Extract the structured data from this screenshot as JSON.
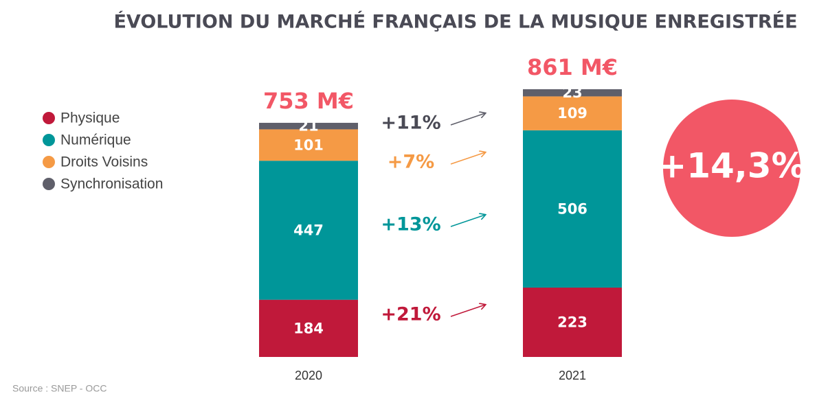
{
  "chart_data": {
    "type": "bar",
    "stacked": true,
    "title": "ÉVOLUTION DU MARCHÉ FRANÇAIS DE LA MUSIQUE ENREGISTRÉE",
    "categories": [
      "2020",
      "2021"
    ],
    "series": [
      {
        "name": "Physique",
        "color": "#c0193a",
        "values": [
          184,
          223
        ],
        "change": "+21%"
      },
      {
        "name": "Numérique",
        "color": "#009699",
        "values": [
          447,
          506
        ],
        "change": "+13%"
      },
      {
        "name": "Droits Voisins",
        "color": "#f59a45",
        "values": [
          101,
          109
        ],
        "change": "+7%"
      },
      {
        "name": "Synchronisation",
        "color": "#5f5f6a",
        "values": [
          21,
          23
        ],
        "change": "+11%"
      }
    ],
    "totals": {
      "values": [
        753,
        861
      ],
      "value_labels": [
        "753 M€",
        "861 M€"
      ],
      "color": "#f25766"
    },
    "total_change": "+14,3%",
    "legend": "left",
    "source": "Source : SNEP - OCC"
  }
}
